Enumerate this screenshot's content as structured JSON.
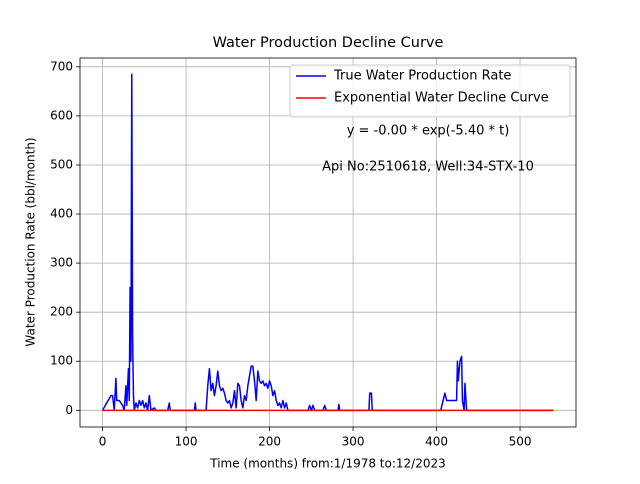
{
  "chart_data": {
    "type": "line",
    "title": "Water Production Decline Curve",
    "xlabel": "Time (months) from:1/1978 to:12/2023",
    "ylabel": "Water Production Rate (bbl/month)",
    "annotations": [
      "y = -0.00 * exp(-5.40 * t)",
      "Api No:2510618, Well:34-STX-10"
    ],
    "xlim": [
      -27,
      567
    ],
    "ylim": [
      -34,
      718
    ],
    "xticks": [
      0,
      100,
      200,
      300,
      400,
      500
    ],
    "yticks": [
      0,
      100,
      200,
      300,
      400,
      500,
      600,
      700
    ],
    "grid": true,
    "legend": "upper right",
    "series": [
      {
        "name": "True Water Production Rate",
        "color": "#0000ff",
        "x": [
          0,
          10,
          12,
          14,
          16,
          17,
          20,
          24,
          26,
          28,
          29,
          31,
          32,
          33,
          34,
          35,
          36,
          37,
          38,
          40,
          42,
          44,
          46,
          48,
          50,
          52,
          54,
          56,
          58,
          62,
          64,
          78,
          80,
          81,
          110,
          111,
          112,
          124,
          126,
          128,
          130,
          132,
          134,
          136,
          138,
          140,
          142,
          144,
          146,
          148,
          150,
          152,
          154,
          156,
          158,
          160,
          162,
          164,
          166,
          168,
          170,
          172,
          174,
          176,
          178,
          180,
          182,
          184,
          186,
          188,
          190,
          192,
          194,
          196,
          198,
          200,
          202,
          204,
          206,
          208,
          210,
          212,
          214,
          216,
          218,
          220,
          222,
          246,
          248,
          250,
          252,
          254,
          264,
          266,
          268,
          282,
          283,
          284,
          319,
          320,
          322,
          323,
          405,
          410,
          412,
          424,
          425,
          426,
          428,
          430,
          431,
          433,
          434,
          436,
          540
        ],
        "values": [
          0,
          30,
          30,
          0,
          65,
          20,
          20,
          10,
          0,
          50,
          10,
          85,
          20,
          250,
          100,
          685,
          150,
          30,
          0,
          15,
          5,
          20,
          10,
          20,
          5,
          15,
          0,
          30,
          0,
          5,
          0,
          0,
          15,
          0,
          0,
          15,
          0,
          0,
          50,
          85,
          40,
          55,
          30,
          50,
          80,
          50,
          40,
          45,
          35,
          20,
          15,
          20,
          5,
          15,
          40,
          5,
          55,
          50,
          20,
          5,
          30,
          20,
          50,
          70,
          90,
          90,
          60,
          20,
          80,
          60,
          55,
          60,
          50,
          55,
          45,
          60,
          50,
          30,
          40,
          20,
          10,
          15,
          5,
          20,
          5,
          15,
          0,
          0,
          10,
          0,
          10,
          0,
          0,
          10,
          0,
          0,
          12,
          0,
          0,
          35,
          35,
          0,
          0,
          35,
          20,
          20,
          100,
          60,
          100,
          110,
          20,
          0,
          55,
          0,
          0
        ]
      },
      {
        "name": "Exponential Water Decline Curve",
        "color": "#ff0000",
        "x": [
          0,
          540
        ],
        "values": [
          0,
          0
        ]
      }
    ]
  }
}
